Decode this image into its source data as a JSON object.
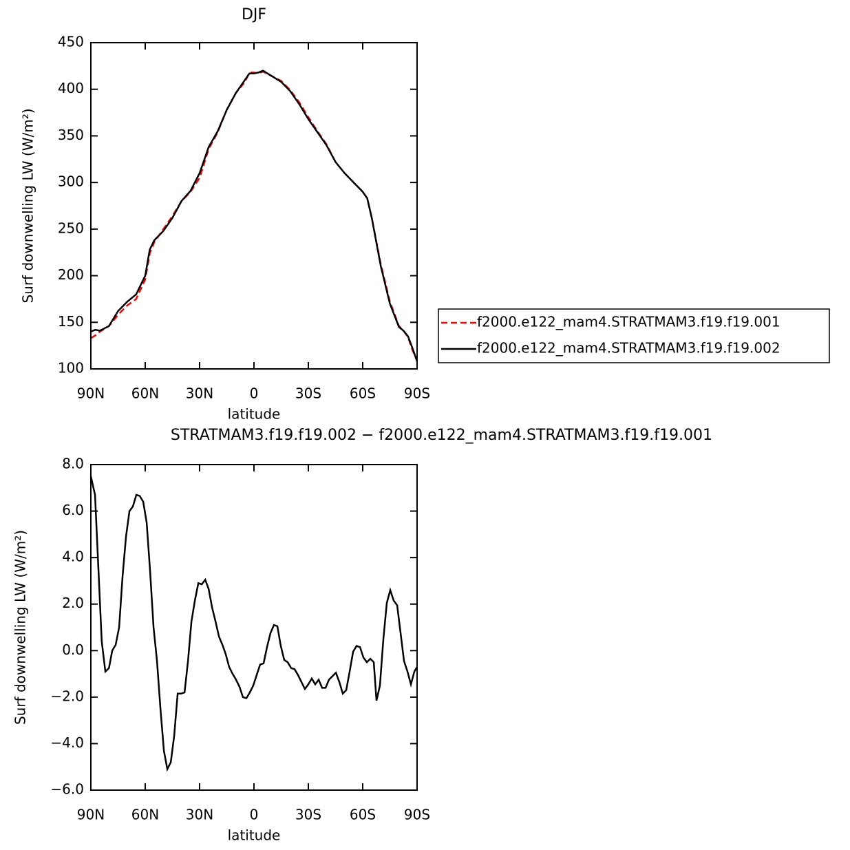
{
  "chart_data": [
    {
      "type": "line",
      "title": "DJF",
      "x_label": "latitude",
      "y_label": "Surf downwelling LW (W/m²)",
      "x": [
        90,
        87.5,
        85,
        80,
        75,
        70,
        65,
        60,
        57.5,
        55,
        50,
        45,
        40,
        35,
        30,
        25,
        20,
        15,
        10,
        5,
        2.5,
        0,
        -2.5,
        -5,
        -10,
        -15,
        -20,
        -25,
        -30,
        -35,
        -40,
        -45,
        -50,
        -55,
        -60,
        -62.5,
        -65,
        -70,
        -75,
        -80,
        -82.5,
        -85,
        -87.5,
        -90
      ],
      "series": [
        {
          "name": "f2000.e122_mam4.STRATMAM3.f19.f19.001",
          "color": "#ff0000",
          "line_style": "dashed",
          "values": [
            133,
            136,
            140,
            146,
            158,
            168,
            175,
            196,
            224,
            236,
            250,
            264,
            280,
            290,
            305,
            336,
            354,
            378,
            396,
            408,
            418,
            418,
            417,
            419,
            414,
            409,
            399,
            386,
            370,
            355,
            341,
            322,
            310,
            300,
            290,
            283,
            262,
            212,
            172,
            146,
            141,
            134,
            120,
            109
          ]
        },
        {
          "name": "f2000.e122_mam4.STRATMAM3.f19.f19.002",
          "color": "#000000",
          "line_style": "solid",
          "values": [
            140,
            142,
            141,
            146,
            162,
            172,
            180,
            200,
            228,
            238,
            248,
            262,
            280,
            291,
            310,
            338,
            355,
            378,
            396,
            410,
            417,
            417,
            418,
            420,
            414,
            408,
            398,
            384,
            368,
            354,
            340,
            322,
            310,
            300,
            290,
            283,
            262,
            210,
            170,
            145,
            141,
            135,
            122,
            108
          ]
        }
      ],
      "xlim": [
        90,
        -90
      ],
      "xticks": [
        {
          "value": 90,
          "label": "90N"
        },
        {
          "value": 60,
          "label": "60N"
        },
        {
          "value": 30,
          "label": "30N"
        },
        0,
        {
          "value": -30,
          "label": "30S"
        },
        {
          "value": -60,
          "label": "60S"
        },
        {
          "value": -90,
          "label": "90S"
        }
      ],
      "ylim": [
        100,
        450
      ],
      "yticks": [
        100,
        150,
        200,
        250,
        300,
        350,
        400,
        450
      ],
      "legend": "right"
    },
    {
      "type": "line",
      "title": "STRATMAM3.f19.f19.002 − f2000.e122_mam4.STRATMAM3.f19.f19.001",
      "x_label": "latitude",
      "y_label": "Surf downwelling LW (W/m²)",
      "x": [
        90,
        87.7,
        84,
        82,
        80,
        78.2,
        76.3,
        74.4,
        72.5,
        70.6,
        68.7,
        66.8,
        64.9,
        63,
        61.1,
        59.2,
        57.3,
        55.4,
        53.5,
        51.6,
        49.7,
        47.8,
        45.9,
        44,
        42.1,
        40.2,
        38.3,
        36.4,
        34.5,
        32.6,
        30.7,
        28.8,
        26.9,
        25,
        23.1,
        21.2,
        19.3,
        17.4,
        15.6,
        13.7,
        11.8,
        9.9,
        8,
        6.1,
        4.2,
        2.3,
        0.4,
        -1.5,
        -3.4,
        -5.3,
        -7.2,
        -9.1,
        -11,
        -12.9,
        -14.8,
        -16.7,
        -18.6,
        -20.5,
        -22.4,
        -24.3,
        -26.2,
        -28.1,
        -30,
        -31.9,
        -33.8,
        -35.7,
        -37.6,
        -39.5,
        -41.4,
        -43.3,
        -45.2,
        -47.1,
        -49,
        -50.9,
        -52.8,
        -54.7,
        -56.6,
        -58.5,
        -60.4,
        -62.3,
        -64.2,
        -66.1,
        -67.6,
        -69.5,
        -71.4,
        -73.3,
        -75.2,
        -77.1,
        -79,
        -80.9,
        -82.8,
        -84.7,
        -86.6,
        -88.5,
        -90
      ],
      "series": [
        {
          "name": "difference",
          "color": "#000000",
          "line_style": "solid",
          "values": [
            7.5,
            6.7,
            0.4,
            -0.9,
            -0.75,
            0,
            0.25,
            1,
            3.2,
            4.9,
            6,
            6.2,
            6.7,
            6.65,
            6.4,
            5.5,
            3.4,
            1,
            -0.45,
            -2.5,
            -4.3,
            -5.1,
            -4.8,
            -3.65,
            -1.85,
            -1.85,
            -1.8,
            -0.45,
            1.25,
            2.15,
            2.9,
            2.85,
            3.05,
            2.65,
            1.85,
            1.25,
            0.6,
            0.25,
            -0.15,
            -0.7,
            -1,
            -1.25,
            -1.55,
            -2,
            -2.05,
            -1.8,
            -1.5,
            -1.05,
            -0.6,
            -0.55,
            0.15,
            0.75,
            1.1,
            1.05,
            0.2,
            -0.4,
            -0.5,
            -0.75,
            -0.8,
            -1.05,
            -1.35,
            -1.65,
            -1.45,
            -1.2,
            -1.45,
            -1.25,
            -1.6,
            -1.6,
            -1.25,
            -1.1,
            -0.95,
            -1.35,
            -1.85,
            -1.7,
            -0.9,
            -0.05,
            0.2,
            0.15,
            -0.3,
            -0.5,
            -0.35,
            -0.5,
            -2.15,
            -1.5,
            0.5,
            2.05,
            2.6,
            2.15,
            1.95,
            0.75,
            -0.45,
            -0.9,
            -1.45,
            -0.9,
            -0.7
          ]
        }
      ],
      "xlim": [
        90,
        -90
      ],
      "xticks": [
        {
          "value": 90,
          "label": "90N"
        },
        {
          "value": 60,
          "label": "60N"
        },
        {
          "value": 30,
          "label": "30N"
        },
        0,
        {
          "value": -30,
          "label": "30S"
        },
        {
          "value": -60,
          "label": "60S"
        },
        {
          "value": -90,
          "label": "90S"
        }
      ],
      "ylim": [
        -6,
        8
      ],
      "yticks": [
        {
          "value": -6,
          "label": "−6.0"
        },
        {
          "value": -4,
          "label": "−4.0"
        },
        {
          "value": -2,
          "label": "−2.0"
        },
        {
          "value": 0,
          "label": "0.0"
        },
        {
          "value": 2,
          "label": "2.0"
        },
        {
          "value": 4,
          "label": "4.0"
        },
        {
          "value": 6,
          "label": "6.0"
        },
        {
          "value": 8,
          "label": "8.0"
        }
      ]
    }
  ]
}
